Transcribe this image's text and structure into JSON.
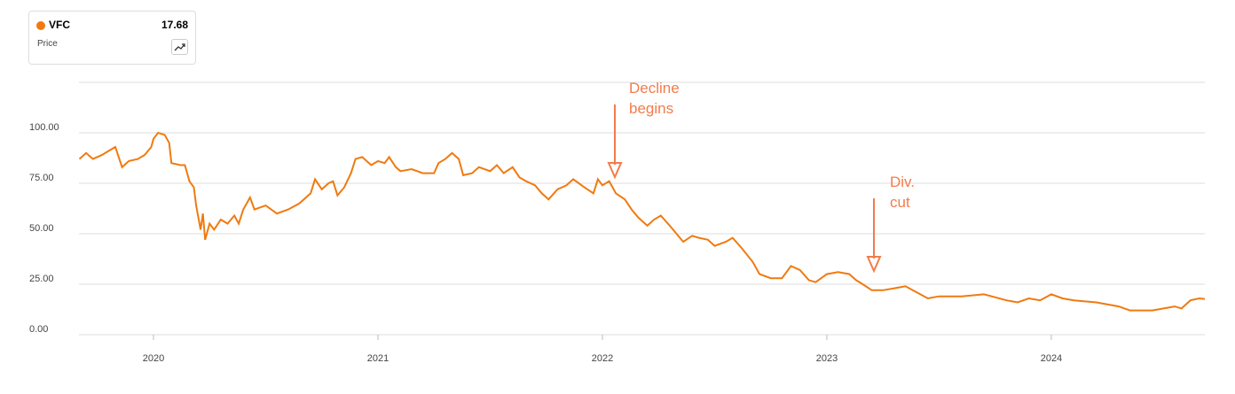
{
  "chart_data": {
    "type": "line",
    "legend_value": 17.68,
    "legend_subtitle": "Price",
    "annotations": [
      "Decline begins",
      "Div. cut"
    ],
    "x": [
      2019.67,
      2019.7,
      2019.73,
      2019.77,
      2019.8,
      2019.83,
      2019.86,
      2019.89,
      2019.93,
      2019.96,
      2019.99,
      2020.0,
      2020.02,
      2020.05,
      2020.07,
      2020.08,
      2020.12,
      2020.14,
      2020.16,
      2020.18,
      2020.19,
      2020.21,
      2020.22,
      2020.23,
      2020.25,
      2020.27,
      2020.3,
      2020.33,
      2020.36,
      2020.38,
      2020.4,
      2020.43,
      2020.45,
      2020.5,
      2020.55,
      2020.6,
      2020.65,
      2020.7,
      2020.72,
      2020.75,
      2020.78,
      2020.8,
      2020.82,
      2020.85,
      2020.88,
      2020.9,
      2020.93,
      2020.97,
      2021.0,
      2021.03,
      2021.05,
      2021.08,
      2021.1,
      2021.15,
      2021.2,
      2021.25,
      2021.27,
      2021.3,
      2021.33,
      2021.36,
      2021.38,
      2021.42,
      2021.45,
      2021.5,
      2021.53,
      2021.56,
      2021.6,
      2021.63,
      2021.66,
      2021.7,
      2021.73,
      2021.76,
      2021.8,
      2021.84,
      2021.87,
      2021.92,
      2021.96,
      2021.98,
      2022.0,
      2022.03,
      2022.06,
      2022.1,
      2022.13,
      2022.16,
      2022.2,
      2022.23,
      2022.26,
      2022.3,
      2022.33,
      2022.36,
      2022.4,
      2022.43,
      2022.47,
      2022.5,
      2022.55,
      2022.58,
      2022.62,
      2022.67,
      2022.7,
      2022.75,
      2022.8,
      2022.84,
      2022.88,
      2022.92,
      2022.95,
      2023.0,
      2023.05,
      2023.1,
      2023.13,
      2023.16,
      2023.2,
      2023.25,
      2023.3,
      2023.35,
      2023.4,
      2023.45,
      2023.5,
      2023.6,
      2023.7,
      2023.8,
      2023.85,
      2023.9,
      2023.95,
      2024.0,
      2024.05,
      2024.1,
      2024.2,
      2024.3,
      2024.35,
      2024.45,
      2024.5,
      2024.55,
      2024.58,
      2024.62,
      2024.66,
      2024.684
    ],
    "series": [
      {
        "name": "VFC",
        "color": "#f07a10",
        "values": [
          87,
          90,
          87,
          89,
          91,
          93,
          83,
          86,
          87,
          89,
          93,
          97,
          100,
          99,
          95,
          85,
          84,
          84,
          76,
          73,
          64,
          52,
          60,
          47,
          55,
          52,
          57,
          55,
          59,
          55,
          62,
          68,
          62,
          64,
          60,
          62,
          65,
          70,
          77,
          72,
          75,
          76,
          69,
          73,
          80,
          87,
          88,
          84,
          86,
          85,
          88,
          83,
          81,
          82,
          80,
          80,
          85,
          87,
          90,
          87,
          79,
          80,
          83,
          81,
          84,
          80,
          83,
          78,
          76,
          74,
          70,
          67,
          72,
          74,
          77,
          73,
          70,
          77,
          74,
          76,
          70,
          67,
          62,
          58,
          54,
          57,
          59,
          54,
          50,
          46,
          49,
          48,
          47,
          44,
          46,
          48,
          43,
          36,
          30,
          28,
          28,
          34,
          32,
          27,
          26,
          30,
          31,
          30,
          27,
          25,
          22,
          22,
          23,
          24,
          21,
          18,
          19,
          19,
          20,
          17,
          16,
          18,
          17,
          20,
          18,
          17,
          16,
          14,
          12,
          12,
          13,
          14,
          13,
          17,
          18,
          17.68
        ]
      }
    ],
    "xlim": [
      2019.668,
      2024.684
    ],
    "xticks": [
      2020,
      2021,
      2022,
      2023,
      2024
    ],
    "ylim": [
      0,
      125
    ],
    "yticks": [
      {
        "value": 0,
        "label": "0.00"
      },
      {
        "value": 25,
        "label": "25.00"
      },
      {
        "value": 50,
        "label": "50.00"
      },
      {
        "value": 75,
        "label": "75.00"
      },
      {
        "value": 100,
        "label": "100.00"
      }
    ],
    "grid": true
  }
}
